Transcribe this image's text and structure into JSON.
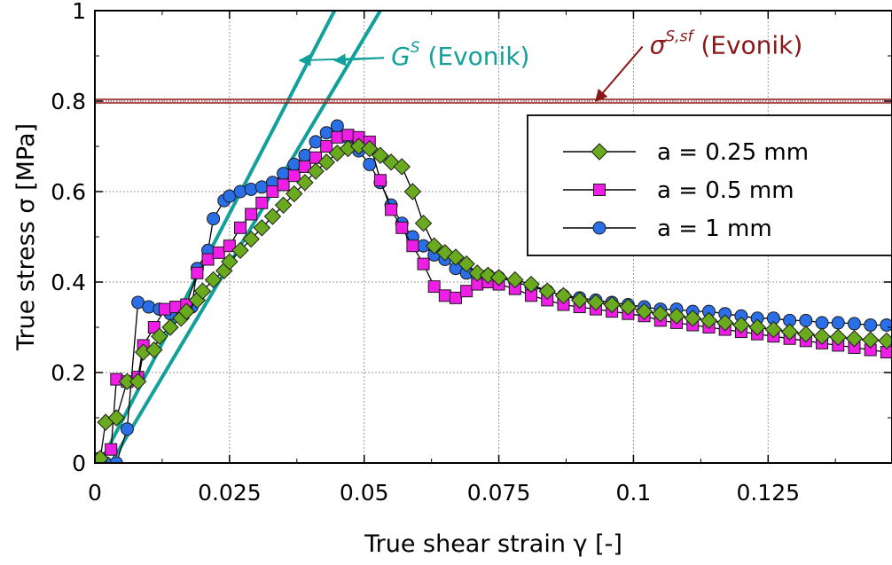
{
  "chart_data": {
    "type": "scatter",
    "xlabel": "True shear strain γ [-]",
    "ylabel": "True stress σ [MPa]",
    "xlim": [
      0,
      0.148
    ],
    "ylim": [
      0,
      1
    ],
    "x_ticks": [
      0,
      0.025,
      0.05,
      0.075,
      0.1,
      0.125
    ],
    "x_tick_labels": [
      "0",
      "0.025",
      "0.05",
      "0.075",
      "0.1",
      "0.125"
    ],
    "y_ticks": [
      0,
      0.2,
      0.4,
      0.6,
      0.8,
      1
    ],
    "y_tick_labels": [
      "0",
      "0.2",
      "0.4",
      "0.6",
      "0.8",
      "1"
    ],
    "grid": true,
    "legend": "right",
    "colors": {
      "green": "#6aaa1e",
      "magenta": "#ee1ee6",
      "blue": "#2a6fe8",
      "teal": "#12a09a",
      "darkred": "#8b1818"
    },
    "series": [
      {
        "name": "a = 0.25 mm",
        "legend_label": "a = 0.25 mm",
        "marker": "diamond",
        "color": "#6aaa1e",
        "points": [
          [
            0.001,
            0.01
          ],
          [
            0.002,
            0.09
          ],
          [
            0.004,
            0.1
          ],
          [
            0.006,
            0.18
          ],
          [
            0.008,
            0.18
          ],
          [
            0.009,
            0.245
          ],
          [
            0.011,
            0.25
          ],
          [
            0.012,
            0.28
          ],
          [
            0.014,
            0.3
          ],
          [
            0.016,
            0.32
          ],
          [
            0.017,
            0.335
          ],
          [
            0.019,
            0.36
          ],
          [
            0.02,
            0.38
          ],
          [
            0.022,
            0.405
          ],
          [
            0.024,
            0.425
          ],
          [
            0.025,
            0.445
          ],
          [
            0.027,
            0.47
          ],
          [
            0.029,
            0.495
          ],
          [
            0.031,
            0.52
          ],
          [
            0.033,
            0.545
          ],
          [
            0.035,
            0.57
          ],
          [
            0.037,
            0.595
          ],
          [
            0.039,
            0.62
          ],
          [
            0.041,
            0.645
          ],
          [
            0.043,
            0.665
          ],
          [
            0.045,
            0.685
          ],
          [
            0.047,
            0.695
          ],
          [
            0.049,
            0.7
          ],
          [
            0.051,
            0.695
          ],
          [
            0.053,
            0.68
          ],
          [
            0.055,
            0.665
          ],
          [
            0.057,
            0.655
          ],
          [
            0.059,
            0.6
          ],
          [
            0.061,
            0.53
          ],
          [
            0.063,
            0.48
          ],
          [
            0.065,
            0.465
          ],
          [
            0.067,
            0.455
          ],
          [
            0.069,
            0.44
          ],
          [
            0.071,
            0.42
          ],
          [
            0.073,
            0.415
          ],
          [
            0.075,
            0.41
          ],
          [
            0.078,
            0.405
          ],
          [
            0.081,
            0.395
          ],
          [
            0.084,
            0.38
          ],
          [
            0.087,
            0.37
          ],
          [
            0.09,
            0.36
          ],
          [
            0.093,
            0.355
          ],
          [
            0.096,
            0.35
          ],
          [
            0.099,
            0.345
          ],
          [
            0.102,
            0.335
          ],
          [
            0.105,
            0.33
          ],
          [
            0.108,
            0.325
          ],
          [
            0.111,
            0.32
          ],
          [
            0.114,
            0.315
          ],
          [
            0.117,
            0.31
          ],
          [
            0.12,
            0.305
          ],
          [
            0.123,
            0.3
          ],
          [
            0.126,
            0.295
          ],
          [
            0.129,
            0.29
          ],
          [
            0.132,
            0.285
          ],
          [
            0.135,
            0.28
          ],
          [
            0.138,
            0.278
          ],
          [
            0.141,
            0.275
          ],
          [
            0.144,
            0.272
          ],
          [
            0.147,
            0.27
          ]
        ]
      },
      {
        "name": "a = 0.5 mm",
        "legend_label": "a = 0.5 mm",
        "marker": "square",
        "color": "#ee1ee6",
        "points": [
          [
            0.001,
            0.01
          ],
          [
            0.003,
            0.03
          ],
          [
            0.004,
            0.185
          ],
          [
            0.006,
            0.18
          ],
          [
            0.008,
            0.19
          ],
          [
            0.009,
            0.26
          ],
          [
            0.011,
            0.3
          ],
          [
            0.013,
            0.34
          ],
          [
            0.015,
            0.345
          ],
          [
            0.017,
            0.35
          ],
          [
            0.019,
            0.42
          ],
          [
            0.021,
            0.45
          ],
          [
            0.023,
            0.465
          ],
          [
            0.025,
            0.48
          ],
          [
            0.027,
            0.52
          ],
          [
            0.029,
            0.55
          ],
          [
            0.031,
            0.575
          ],
          [
            0.033,
            0.6
          ],
          [
            0.035,
            0.615
          ],
          [
            0.037,
            0.635
          ],
          [
            0.039,
            0.655
          ],
          [
            0.041,
            0.675
          ],
          [
            0.043,
            0.7
          ],
          [
            0.045,
            0.72
          ],
          [
            0.047,
            0.725
          ],
          [
            0.049,
            0.72
          ],
          [
            0.051,
            0.71
          ],
          [
            0.053,
            0.625
          ],
          [
            0.055,
            0.56
          ],
          [
            0.057,
            0.52
          ],
          [
            0.059,
            0.48
          ],
          [
            0.061,
            0.44
          ],
          [
            0.063,
            0.39
          ],
          [
            0.065,
            0.37
          ],
          [
            0.067,
            0.365
          ],
          [
            0.069,
            0.38
          ],
          [
            0.071,
            0.395
          ],
          [
            0.073,
            0.4
          ],
          [
            0.075,
            0.395
          ],
          [
            0.078,
            0.385
          ],
          [
            0.081,
            0.37
          ],
          [
            0.084,
            0.36
          ],
          [
            0.087,
            0.35
          ],
          [
            0.09,
            0.345
          ],
          [
            0.093,
            0.34
          ],
          [
            0.096,
            0.335
          ],
          [
            0.099,
            0.33
          ],
          [
            0.102,
            0.325
          ],
          [
            0.105,
            0.315
          ],
          [
            0.108,
            0.31
          ],
          [
            0.111,
            0.305
          ],
          [
            0.114,
            0.3
          ],
          [
            0.117,
            0.295
          ],
          [
            0.12,
            0.29
          ],
          [
            0.123,
            0.285
          ],
          [
            0.126,
            0.28
          ],
          [
            0.129,
            0.275
          ],
          [
            0.132,
            0.27
          ],
          [
            0.135,
            0.265
          ],
          [
            0.138,
            0.26
          ],
          [
            0.141,
            0.255
          ],
          [
            0.144,
            0.25
          ],
          [
            0.147,
            0.245
          ]
        ]
      },
      {
        "name": "a = 1 mm",
        "legend_label": "a = 1 mm",
        "marker": "circle",
        "color": "#2a6fe8",
        "points": [
          [
            0.002,
            0.0
          ],
          [
            0.004,
            0.0
          ],
          [
            0.006,
            0.075
          ],
          [
            0.008,
            0.355
          ],
          [
            0.01,
            0.345
          ],
          [
            0.012,
            0.34
          ],
          [
            0.014,
            0.33
          ],
          [
            0.016,
            0.34
          ],
          [
            0.018,
            0.345
          ],
          [
            0.019,
            0.43
          ],
          [
            0.021,
            0.47
          ],
          [
            0.022,
            0.54
          ],
          [
            0.024,
            0.58
          ],
          [
            0.025,
            0.59
          ],
          [
            0.027,
            0.6
          ],
          [
            0.029,
            0.605
          ],
          [
            0.031,
            0.61
          ],
          [
            0.033,
            0.62
          ],
          [
            0.035,
            0.64
          ],
          [
            0.037,
            0.66
          ],
          [
            0.039,
            0.68
          ],
          [
            0.041,
            0.71
          ],
          [
            0.043,
            0.73
          ],
          [
            0.045,
            0.745
          ],
          [
            0.047,
            0.72
          ],
          [
            0.049,
            0.69
          ],
          [
            0.051,
            0.66
          ],
          [
            0.053,
            0.62
          ],
          [
            0.055,
            0.57
          ],
          [
            0.057,
            0.53
          ],
          [
            0.059,
            0.5
          ],
          [
            0.061,
            0.48
          ],
          [
            0.063,
            0.46
          ],
          [
            0.065,
            0.45
          ],
          [
            0.067,
            0.43
          ],
          [
            0.069,
            0.42
          ],
          [
            0.071,
            0.415
          ],
          [
            0.073,
            0.415
          ],
          [
            0.075,
            0.41
          ],
          [
            0.078,
            0.4
          ],
          [
            0.081,
            0.39
          ],
          [
            0.084,
            0.38
          ],
          [
            0.087,
            0.37
          ],
          [
            0.09,
            0.365
          ],
          [
            0.093,
            0.36
          ],
          [
            0.096,
            0.355
          ],
          [
            0.099,
            0.35
          ],
          [
            0.102,
            0.345
          ],
          [
            0.105,
            0.34
          ],
          [
            0.108,
            0.34
          ],
          [
            0.111,
            0.335
          ],
          [
            0.114,
            0.335
          ],
          [
            0.117,
            0.33
          ],
          [
            0.12,
            0.325
          ],
          [
            0.123,
            0.32
          ],
          [
            0.126,
            0.32
          ],
          [
            0.129,
            0.315
          ],
          [
            0.132,
            0.315
          ],
          [
            0.135,
            0.31
          ],
          [
            0.138,
            0.31
          ],
          [
            0.141,
            0.308
          ],
          [
            0.144,
            0.305
          ],
          [
            0.147,
            0.305
          ]
        ]
      }
    ],
    "reference_lines": [
      {
        "name": "G^S (Evonik)",
        "kind": "shear_modulus_left",
        "color": "#12a09a",
        "from": [
          0.001,
          0.0
        ],
        "to": [
          0.0445,
          1.0
        ]
      },
      {
        "name": "G^S (Evonik)",
        "kind": "shear_modulus_right",
        "color": "#12a09a",
        "from": [
          0.003,
          0.0
        ],
        "to": [
          0.053,
          1.0
        ]
      },
      {
        "name": "σ^S,sf (Evonik)",
        "kind": "strength",
        "color": "#8b1818",
        "y": 0.8
      }
    ],
    "annotations": [
      {
        "id": "gs",
        "base": "G",
        "sup": "S",
        "suffix": " (Evonik)",
        "color": "#12a09a",
        "text_at": [
          0.055,
          0.88
        ],
        "arrows_to": [
          [
            0.038,
            0.89
          ],
          [
            0.0445,
            0.89
          ]
        ]
      },
      {
        "id": "sigma",
        "base": "σ",
        "sup": "S,sf",
        "suffix": " (Evonik)",
        "color": "#8b1818",
        "text_at": [
          0.103,
          0.905
        ],
        "arrows_to": [
          [
            0.093,
            0.8
          ]
        ]
      }
    ]
  }
}
